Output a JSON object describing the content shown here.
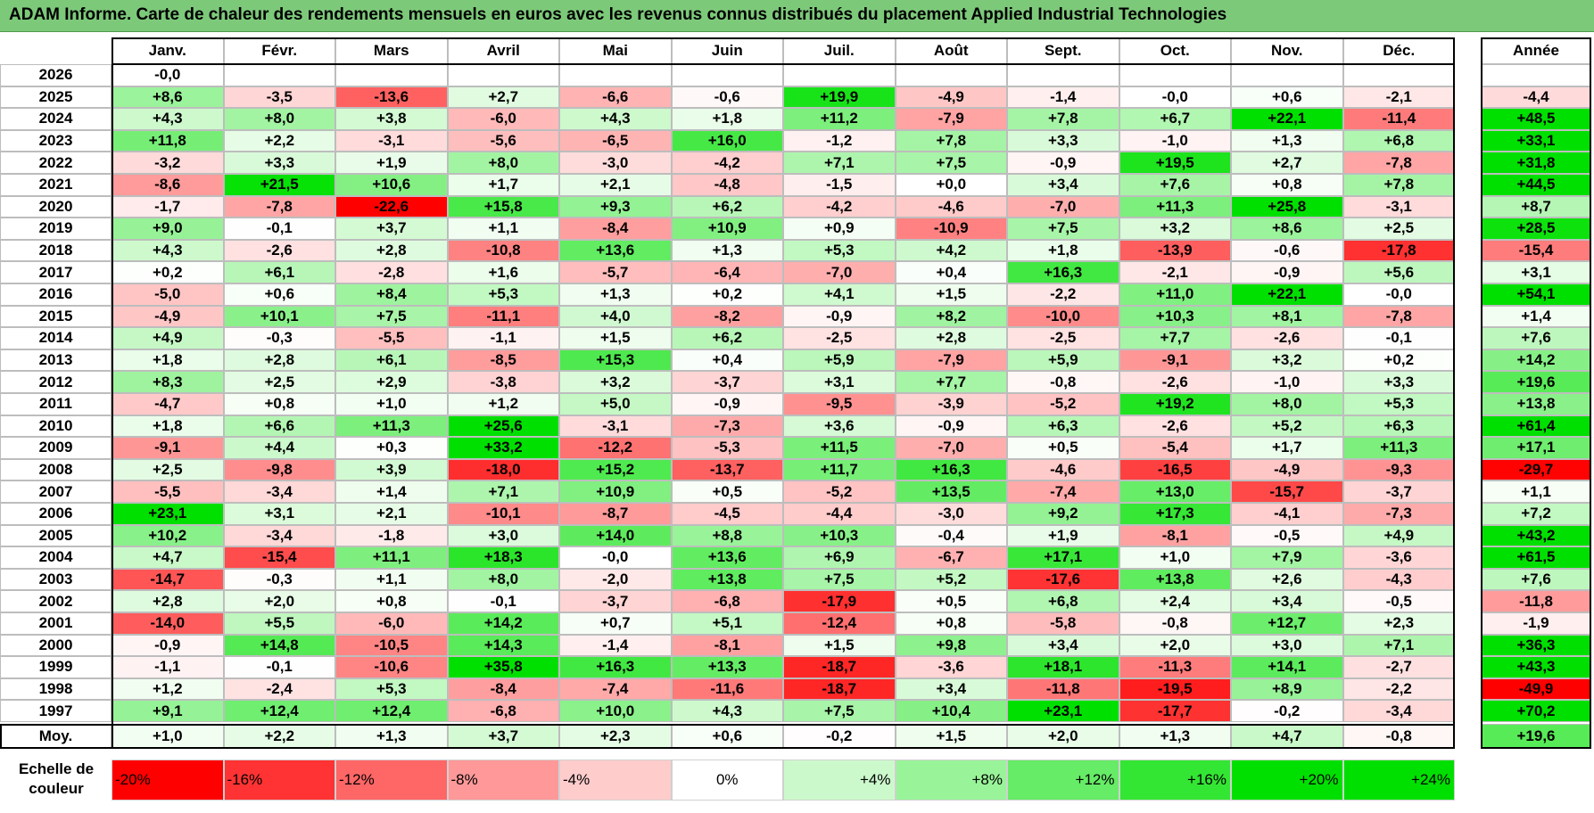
{
  "title": "ADAM Informe. Carte de chaleur des rendements mensuels en euros avec les revenus connus distribués du placement Applied Industrial Technologies",
  "colors": {
    "title_bg": "#7dc97a",
    "negative_max": "#ff0000",
    "positive_max": "#00e000",
    "neutral": "#ffffff"
  },
  "chart_data": {
    "type": "heatmap",
    "title": "ADAM Informe. Carte de chaleur des rendements mensuels en euros avec les revenus connus distribués du placement Applied Industrial Technologies",
    "columns": [
      "Janv.",
      "Févr.",
      "Mars",
      "Avril",
      "Mai",
      "Juin",
      "Juil.",
      "Août",
      "Sept.",
      "Oct.",
      "Nov.",
      "Déc."
    ],
    "annual_header": "Année",
    "rows": [
      {
        "year": "2026",
        "values": [
          "-0,0",
          "",
          "",
          "",
          "",
          "",
          "",
          "",
          "",
          "",
          "",
          ""
        ],
        "annual": ""
      },
      {
        "year": "2025",
        "values": [
          "+8,6",
          "-3,5",
          "-13,6",
          "+2,7",
          "-6,6",
          "-0,6",
          "+19,9",
          "-4,9",
          "-1,4",
          "-0,0",
          "+0,6",
          "-2,1"
        ],
        "annual": "-4,4"
      },
      {
        "year": "2024",
        "values": [
          "+4,3",
          "+8,0",
          "+3,8",
          "-6,0",
          "+4,3",
          "+1,8",
          "+11,2",
          "-7,9",
          "+7,8",
          "+6,7",
          "+22,1",
          "-11,4"
        ],
        "annual": "+48,5"
      },
      {
        "year": "2023",
        "values": [
          "+11,8",
          "+2,2",
          "-3,1",
          "-5,6",
          "-6,5",
          "+16,0",
          "-1,2",
          "+7,8",
          "+3,3",
          "-1,0",
          "+1,3",
          "+6,8"
        ],
        "annual": "+33,1"
      },
      {
        "year": "2022",
        "values": [
          "-3,2",
          "+3,3",
          "+1,9",
          "+8,0",
          "-3,0",
          "-4,2",
          "+7,1",
          "+7,5",
          "-0,9",
          "+19,5",
          "+2,7",
          "-7,8"
        ],
        "annual": "+31,8"
      },
      {
        "year": "2021",
        "values": [
          "-8,6",
          "+21,5",
          "+10,6",
          "+1,7",
          "+2,1",
          "-4,8",
          "-1,5",
          "+0,0",
          "+3,4",
          "+7,6",
          "+0,8",
          "+7,8"
        ],
        "annual": "+44,5"
      },
      {
        "year": "2020",
        "values": [
          "-1,7",
          "-7,8",
          "-22,6",
          "+15,8",
          "+9,3",
          "+6,2",
          "-4,2",
          "-4,6",
          "-7,0",
          "+11,3",
          "+25,8",
          "-3,1"
        ],
        "annual": "+8,7"
      },
      {
        "year": "2019",
        "values": [
          "+9,0",
          "-0,1",
          "+3,7",
          "+1,1",
          "-8,4",
          "+10,9",
          "+0,9",
          "-10,9",
          "+7,5",
          "+3,2",
          "+8,6",
          "+2,5"
        ],
        "annual": "+28,5"
      },
      {
        "year": "2018",
        "values": [
          "+4,3",
          "-2,6",
          "+2,8",
          "-10,8",
          "+13,6",
          "+1,3",
          "+5,3",
          "+4,2",
          "+1,8",
          "-13,9",
          "-0,6",
          "-17,8"
        ],
        "annual": "-15,4"
      },
      {
        "year": "2017",
        "values": [
          "+0,2",
          "+6,1",
          "-2,8",
          "+1,6",
          "-5,7",
          "-6,4",
          "-7,0",
          "+0,4",
          "+16,3",
          "-2,1",
          "-0,9",
          "+5,6"
        ],
        "annual": "+3,1"
      },
      {
        "year": "2016",
        "values": [
          "-5,0",
          "+0,6",
          "+8,4",
          "+5,3",
          "+1,3",
          "+0,2",
          "+4,1",
          "+1,5",
          "-2,2",
          "+11,0",
          "+22,1",
          "-0,0"
        ],
        "annual": "+54,1"
      },
      {
        "year": "2015",
        "values": [
          "-4,9",
          "+10,1",
          "+7,5",
          "-11,1",
          "+4,0",
          "-8,2",
          "-0,9",
          "+8,2",
          "-10,0",
          "+10,3",
          "+8,1",
          "-7,8"
        ],
        "annual": "+1,4"
      },
      {
        "year": "2014",
        "values": [
          "+4,9",
          "-0,3",
          "-5,5",
          "-1,1",
          "+1,5",
          "+6,2",
          "-2,5",
          "+2,8",
          "-2,5",
          "+7,7",
          "-2,6",
          "-0,1"
        ],
        "annual": "+7,6"
      },
      {
        "year": "2013",
        "values": [
          "+1,8",
          "+2,8",
          "+6,1",
          "-8,5",
          "+15,3",
          "+0,4",
          "+5,9",
          "-7,9",
          "+5,9",
          "-9,1",
          "+3,2",
          "+0,2"
        ],
        "annual": "+14,2"
      },
      {
        "year": "2012",
        "values": [
          "+8,3",
          "+2,5",
          "+2,9",
          "-3,8",
          "+3,2",
          "-3,7",
          "+3,1",
          "+7,7",
          "-0,8",
          "-2,6",
          "-1,0",
          "+3,3"
        ],
        "annual": "+19,6"
      },
      {
        "year": "2011",
        "values": [
          "-4,7",
          "+0,8",
          "+1,0",
          "+1,2",
          "+5,0",
          "-0,9",
          "-9,5",
          "-3,9",
          "-5,2",
          "+19,2",
          "+8,0",
          "+5,3"
        ],
        "annual": "+13,8"
      },
      {
        "year": "2010",
        "values": [
          "+1,8",
          "+6,6",
          "+11,3",
          "+25,6",
          "-3,1",
          "-7,3",
          "+3,6",
          "-0,9",
          "+6,3",
          "-2,6",
          "+5,2",
          "+6,3"
        ],
        "annual": "+61,4"
      },
      {
        "year": "2009",
        "values": [
          "-9,1",
          "+4,4",
          "+0,3",
          "+33,2",
          "-12,2",
          "-5,3",
          "+11,5",
          "-7,0",
          "+0,5",
          "-5,4",
          "+1,7",
          "+11,3"
        ],
        "annual": "+17,1"
      },
      {
        "year": "2008",
        "values": [
          "+2,5",
          "-9,8",
          "+3,9",
          "-18,0",
          "+15,2",
          "-13,7",
          "+11,7",
          "+16,3",
          "-4,6",
          "-16,5",
          "-4,9",
          "-9,3"
        ],
        "annual": "-29,7"
      },
      {
        "year": "2007",
        "values": [
          "-5,5",
          "-3,4",
          "+1,4",
          "+7,1",
          "+10,9",
          "+0,5",
          "-5,2",
          "+13,5",
          "-7,4",
          "+13,0",
          "-15,7",
          "-3,7"
        ],
        "annual": "+1,1"
      },
      {
        "year": "2006",
        "values": [
          "+23,1",
          "+3,1",
          "+2,1",
          "-10,1",
          "-8,7",
          "-4,5",
          "-4,4",
          "-3,0",
          "+9,2",
          "+17,3",
          "-4,1",
          "-7,3"
        ],
        "annual": "+7,2"
      },
      {
        "year": "2005",
        "values": [
          "+10,2",
          "-3,4",
          "-1,8",
          "+3,0",
          "+14,0",
          "+8,8",
          "+10,3",
          "-0,4",
          "+1,9",
          "-8,1",
          "-0,5",
          "+4,9"
        ],
        "annual": "+43,2"
      },
      {
        "year": "2004",
        "values": [
          "+4,7",
          "-15,4",
          "+11,1",
          "+18,3",
          "-0,0",
          "+13,6",
          "+6,9",
          "-6,7",
          "+17,1",
          "+1,0",
          "+7,9",
          "-3,6"
        ],
        "annual": "+61,5"
      },
      {
        "year": "2003",
        "values": [
          "-14,7",
          "-0,3",
          "+1,1",
          "+8,0",
          "-2,0",
          "+13,8",
          "+7,5",
          "+5,2",
          "-17,6",
          "+13,8",
          "+2,6",
          "-4,3"
        ],
        "annual": "+7,6"
      },
      {
        "year": "2002",
        "values": [
          "+2,8",
          "+2,0",
          "+0,8",
          "-0,1",
          "-3,7",
          "-6,8",
          "-17,9",
          "+0,5",
          "+6,8",
          "+2,4",
          "+3,4",
          "-0,5"
        ],
        "annual": "-11,8"
      },
      {
        "year": "2001",
        "values": [
          "-14,0",
          "+5,5",
          "-6,0",
          "+14,2",
          "+0,7",
          "+5,1",
          "-12,4",
          "+0,8",
          "-5,8",
          "-0,8",
          "+12,7",
          "+2,3"
        ],
        "annual": "-1,9"
      },
      {
        "year": "2000",
        "values": [
          "-0,9",
          "+14,8",
          "-10,5",
          "+14,3",
          "-1,4",
          "-8,1",
          "+1,5",
          "+9,8",
          "+3,4",
          "+2,0",
          "+3,0",
          "+7,1"
        ],
        "annual": "+36,3"
      },
      {
        "year": "1999",
        "values": [
          "-1,1",
          "-0,1",
          "-10,6",
          "+35,8",
          "+16,3",
          "+13,3",
          "-18,7",
          "-3,6",
          "+18,1",
          "-11,3",
          "+14,1",
          "-2,7"
        ],
        "annual": "+43,3"
      },
      {
        "year": "1998",
        "values": [
          "+1,2",
          "-2,4",
          "+5,3",
          "-8,4",
          "-7,4",
          "-11,6",
          "-18,7",
          "+3,4",
          "-11,8",
          "-19,5",
          "+8,9",
          "-2,2"
        ],
        "annual": "-49,9"
      },
      {
        "year": "1997",
        "values": [
          "+9,1",
          "+12,4",
          "+12,4",
          "-6,8",
          "+10,0",
          "+4,3",
          "+7,5",
          "+10,4",
          "+23,1",
          "-17,7",
          "-0,2",
          "-3,4"
        ],
        "annual": "+70,2"
      }
    ],
    "average": {
      "label": "Moy.",
      "values": [
        "+1,0",
        "+2,2",
        "+1,3",
        "+3,7",
        "+2,3",
        "+0,6",
        "-0,2",
        "+1,5",
        "+2,0",
        "+1,3",
        "+4,7",
        "-0,8"
      ],
      "annual": "+19,6"
    },
    "color_scale": {
      "label": "Echelle de couleur",
      "steps": [
        "-20%",
        "-16%",
        "-12%",
        "-8%",
        "-4%",
        "0%",
        "+4%",
        "+8%",
        "+12%",
        "+16%",
        "+20%",
        "+24%"
      ],
      "step_values": [
        -20,
        -16,
        -12,
        -8,
        -4,
        0,
        4,
        8,
        12,
        16,
        20,
        24
      ]
    }
  }
}
